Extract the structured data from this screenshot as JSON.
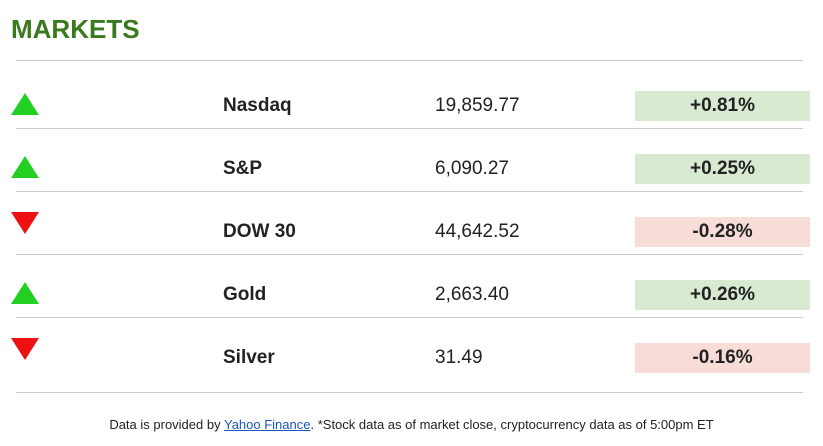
{
  "title": "MARKETS",
  "rows": [
    {
      "name": "Nasdaq",
      "value": "19,859.77",
      "change": "+0.81%",
      "dir": "up"
    },
    {
      "name": "S&P",
      "value": "6,090.27",
      "change": "+0.25%",
      "dir": "up"
    },
    {
      "name": "DOW 30",
      "value": "44,642.52",
      "change": "-0.28%",
      "dir": "down"
    },
    {
      "name": "Gold",
      "value": "2,663.40",
      "change": "+0.26%",
      "dir": "up"
    },
    {
      "name": "Silver",
      "value": "31.49",
      "change": "-0.16%",
      "dir": "down"
    }
  ],
  "footer": {
    "prefix": "Data is provided by ",
    "link": "Yahoo Finance",
    "suffix": ". *Stock data as of market close, cryptocurrency data as of 5:00pm ET"
  },
  "colors": {
    "up": "#22d022",
    "down": "#ee1111",
    "title": "#3a7a1e"
  }
}
